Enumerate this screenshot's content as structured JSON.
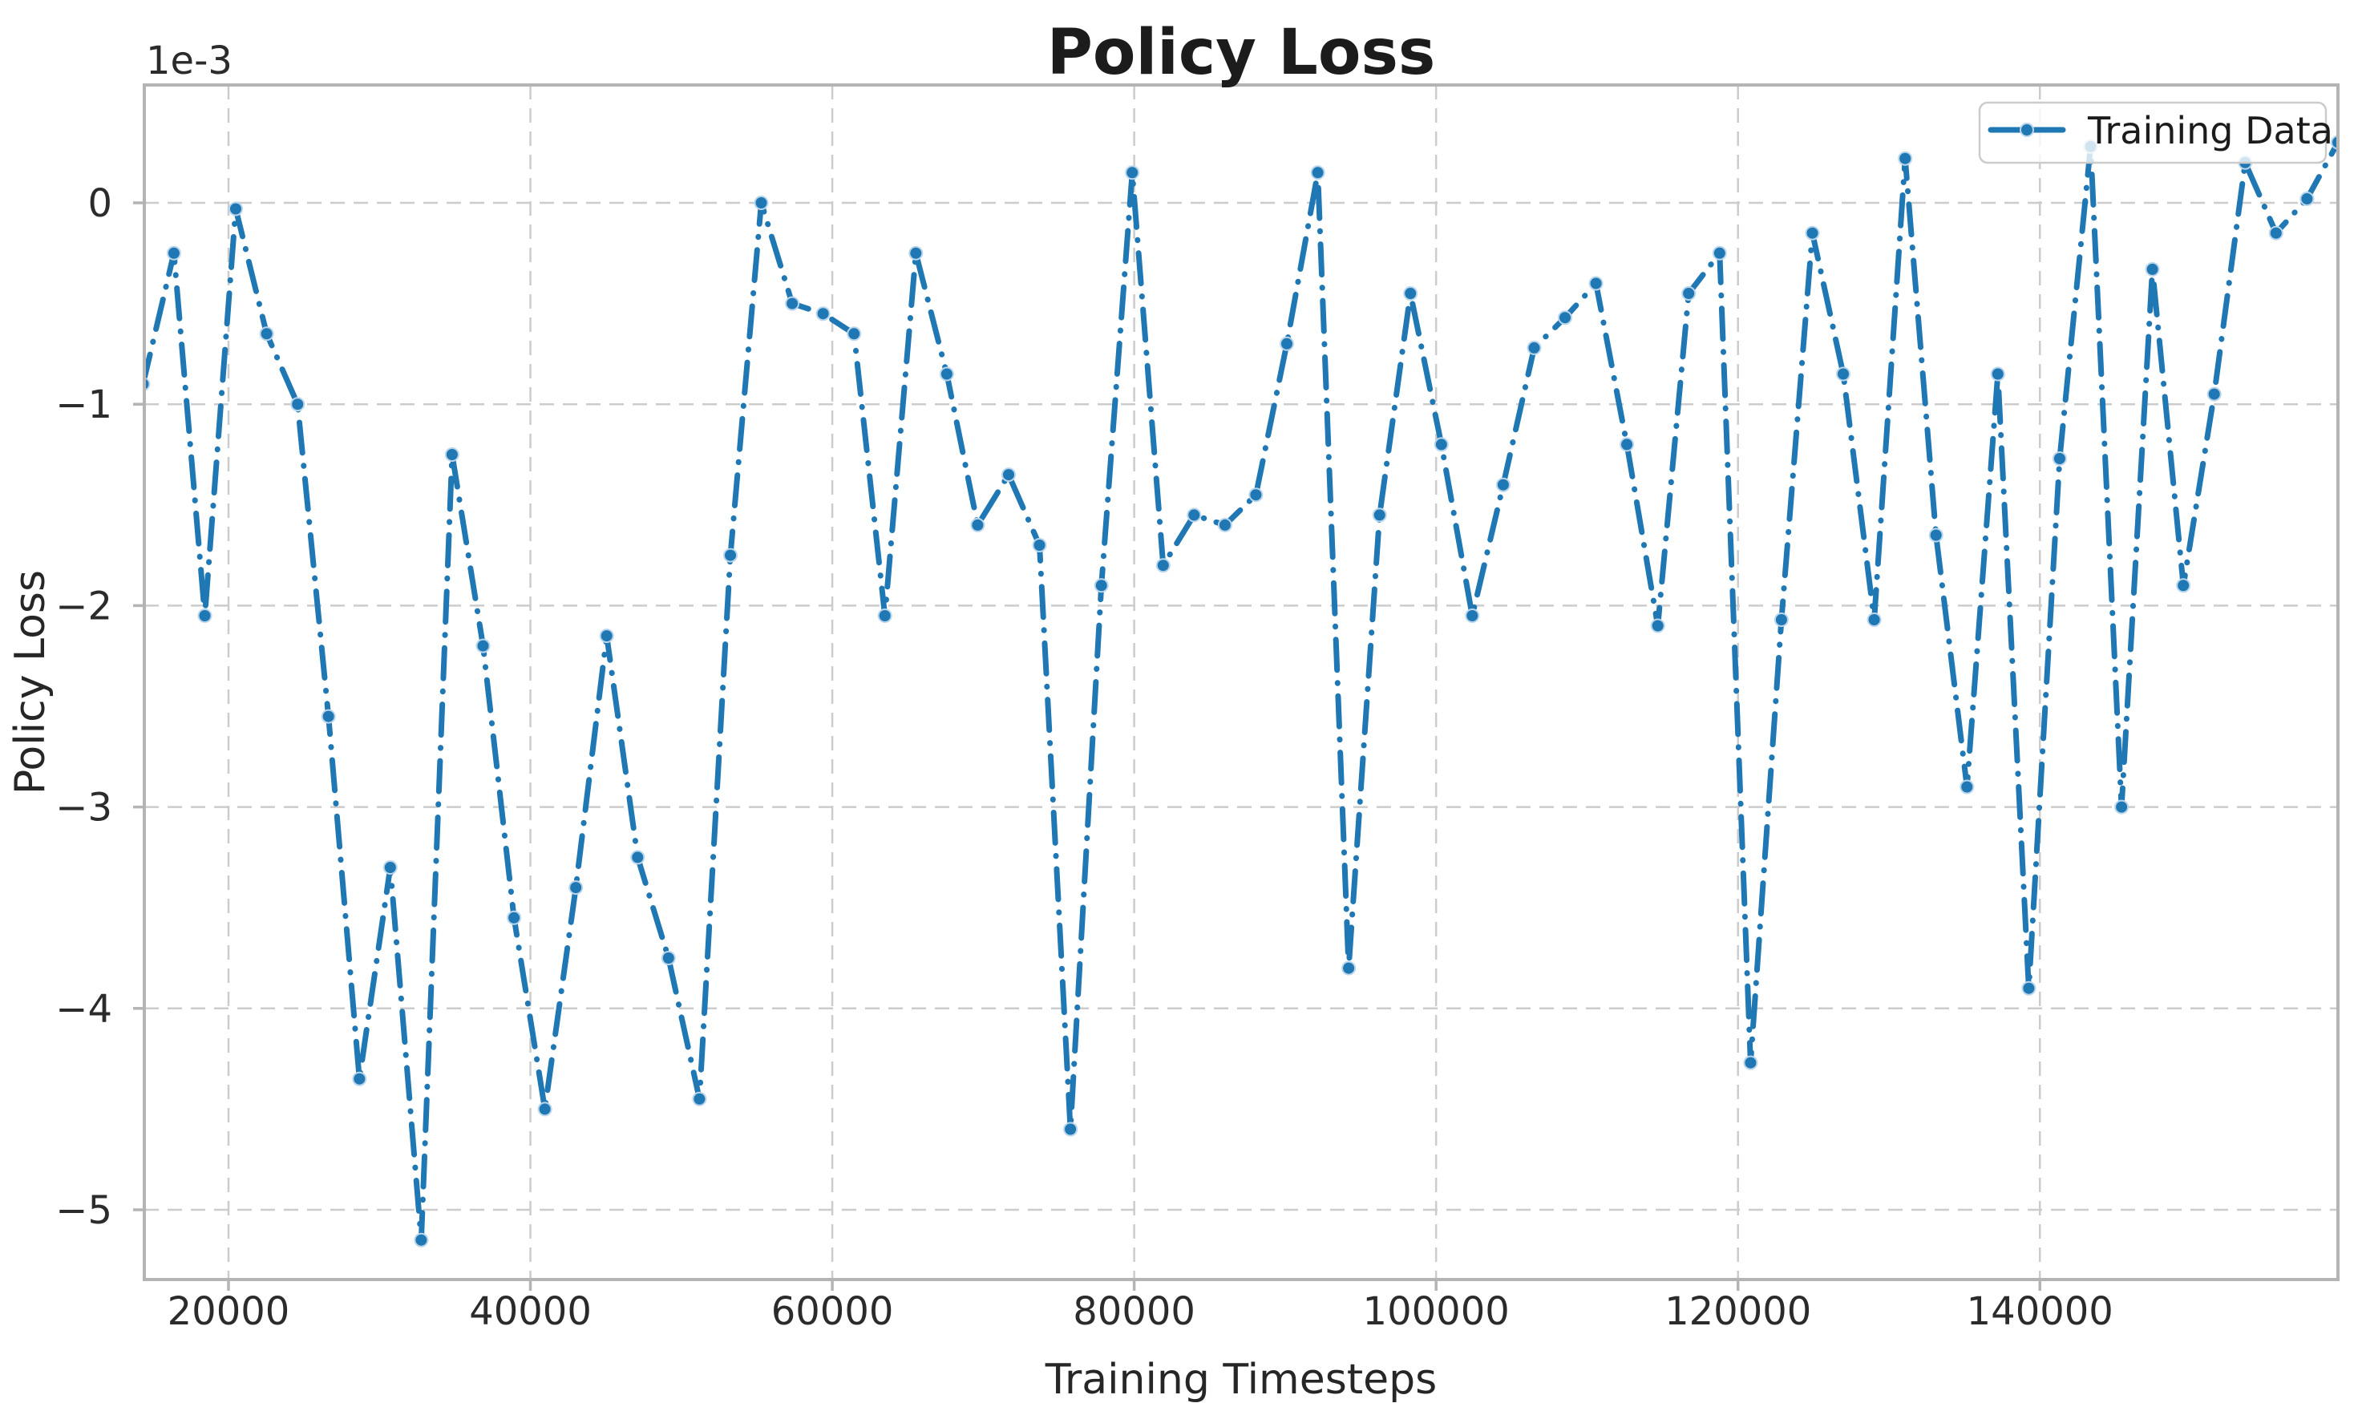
{
  "chart_data": {
    "type": "line",
    "title": "Policy Loss",
    "xlabel": "Training Timesteps",
    "ylabel": "Policy Loss",
    "y_offset_text": "1e-3",
    "grid": true,
    "legend": {
      "position": "upper right",
      "entries": [
        "Training Data"
      ]
    },
    "x_ticks": [
      20000,
      40000,
      60000,
      80000,
      100000,
      120000,
      140000
    ],
    "x_tick_labels": [
      "20000",
      "40000",
      "60000",
      "80000",
      "100000",
      "120000",
      "140000"
    ],
    "y_ticks_1e3": [
      0,
      -1,
      -2,
      -3,
      -4,
      -5
    ],
    "y_tick_labels": [
      "0",
      "−1",
      "−2",
      "−3",
      "−4",
      "−5"
    ],
    "xlim": [
      14336,
      159744
    ],
    "ylim_1e3": [
      -5.35,
      0.58
    ],
    "series": [
      {
        "name": "Training Data",
        "color": "#1f77b4",
        "linestyle": "dashdot",
        "marker": "circle",
        "x": [
          14336,
          16384,
          18432,
          20480,
          22528,
          24576,
          26624,
          28672,
          30720,
          32768,
          34816,
          36864,
          38912,
          40960,
          43008,
          45056,
          47104,
          49152,
          51200,
          53248,
          55296,
          57344,
          59392,
          61440,
          63488,
          65536,
          67584,
          69632,
          71680,
          73728,
          75776,
          77824,
          79872,
          81920,
          83968,
          86016,
          88064,
          90112,
          92160,
          94208,
          96256,
          98304,
          100352,
          102400,
          104448,
          106496,
          108544,
          110592,
          112640,
          114688,
          116736,
          118784,
          120832,
          122880,
          124928,
          126976,
          129024,
          131072,
          133120,
          135168,
          137216,
          139264,
          141312,
          143360,
          145408,
          147456,
          149504,
          151552,
          153600,
          155648,
          157696,
          159744
        ],
        "y_1e3": [
          -0.9,
          -0.25,
          -2.05,
          -0.03,
          -0.65,
          -1.0,
          -2.55,
          -4.35,
          -3.3,
          -5.15,
          -1.25,
          -2.2,
          -3.55,
          -4.5,
          -3.4,
          -2.15,
          -3.25,
          -3.75,
          -4.45,
          -1.75,
          0.0,
          -0.5,
          -0.55,
          -0.65,
          -2.05,
          -0.25,
          -0.85,
          -1.6,
          -1.35,
          -1.7,
          -4.6,
          -1.9,
          0.15,
          -1.8,
          -1.55,
          -1.6,
          -1.45,
          -0.7,
          0.15,
          -3.8,
          -1.55,
          -0.45,
          -1.2,
          -2.05,
          -1.4,
          -0.72,
          -0.57,
          -0.4,
          -1.2,
          -2.1,
          -0.45,
          -0.25,
          -4.27,
          -2.07,
          -0.15,
          -0.85,
          -2.07,
          0.22,
          -1.65,
          -2.9,
          -0.85,
          -3.9,
          -1.27,
          0.28,
          -3.0,
          -0.33,
          -1.9,
          -0.95,
          0.2,
          -0.15,
          0.02,
          0.3
        ]
      }
    ],
    "colors": {
      "line": "#1f77b4",
      "marker_edge": "#b9d5ec",
      "grid": "#cccccc",
      "spine": "#b4b4b4",
      "text": "#262626",
      "legend_border": "#cccccc",
      "background": "#ffffff"
    }
  }
}
